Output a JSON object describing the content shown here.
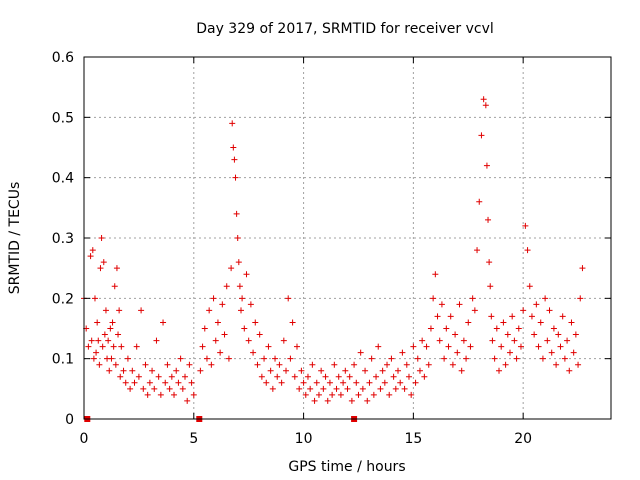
{
  "chart_data": {
    "type": "scatter",
    "title": "Day 329 of 2017, SRMTID for receiver vcvl",
    "xlabel": "GPS time / hours",
    "ylabel": "SRMTID / TECUs",
    "xlim": [
      0,
      24
    ],
    "ylim": [
      0,
      0.6
    ],
    "x_ticks": [
      0,
      5,
      10,
      15,
      20
    ],
    "x_tick_labels": [
      "0",
      "5",
      "10",
      "15",
      "20"
    ],
    "y_ticks": [
      0,
      0.1,
      0.2,
      0.3,
      0.4,
      0.5,
      0.6
    ],
    "y_tick_labels": [
      "0",
      "0.1",
      "0.2",
      "0.3",
      "0.4",
      "0.5",
      "0.6"
    ],
    "grid": true,
    "marker": "+",
    "color": "#e00000",
    "series": [
      {
        "name": "SRMTID",
        "x": [
          0.0,
          0.1,
          0.2,
          0.3,
          0.35,
          0.4,
          0.45,
          0.5,
          0.55,
          0.6,
          0.65,
          0.7,
          0.75,
          0.8,
          0.85,
          0.9,
          0.95,
          1.0,
          1.05,
          1.1,
          1.15,
          1.2,
          1.25,
          1.3,
          1.35,
          1.4,
          1.45,
          1.5,
          1.55,
          1.6,
          1.65,
          1.7,
          1.8,
          1.9,
          2.0,
          2.1,
          2.2,
          2.3,
          2.4,
          2.5,
          2.6,
          2.7,
          2.8,
          2.9,
          3.0,
          3.1,
          3.2,
          3.3,
          3.4,
          3.5,
          3.6,
          3.7,
          3.8,
          3.9,
          4.0,
          4.1,
          4.2,
          4.3,
          4.4,
          4.5,
          4.6,
          4.7,
          4.8,
          4.9,
          5.0,
          5.3,
          5.4,
          5.5,
          5.6,
          5.7,
          5.8,
          5.9,
          6.0,
          6.1,
          6.2,
          6.3,
          6.4,
          6.5,
          6.6,
          6.7,
          6.75,
          6.8,
          6.85,
          6.9,
          6.95,
          7.0,
          7.05,
          7.1,
          7.15,
          7.2,
          7.3,
          7.4,
          7.5,
          7.6,
          7.7,
          7.8,
          7.9,
          8.0,
          8.1,
          8.2,
          8.3,
          8.4,
          8.5,
          8.6,
          8.7,
          8.8,
          8.9,
          9.0,
          9.1,
          9.2,
          9.3,
          9.4,
          9.5,
          9.6,
          9.7,
          9.8,
          9.9,
          10.0,
          10.1,
          10.2,
          10.3,
          10.4,
          10.5,
          10.6,
          10.7,
          10.8,
          10.9,
          11.0,
          11.1,
          11.2,
          11.3,
          11.4,
          11.5,
          11.6,
          11.7,
          11.8,
          11.9,
          12.0,
          12.1,
          12.2,
          12.3,
          12.4,
          12.5,
          12.6,
          12.7,
          12.8,
          12.9,
          13.0,
          13.1,
          13.2,
          13.3,
          13.4,
          13.5,
          13.6,
          13.7,
          13.8,
          13.9,
          14.0,
          14.1,
          14.2,
          14.3,
          14.4,
          14.5,
          14.6,
          14.7,
          14.8,
          14.9,
          15.0,
          15.1,
          15.2,
          15.3,
          15.4,
          15.5,
          15.6,
          15.7,
          15.8,
          15.9,
          16.0,
          16.1,
          16.2,
          16.3,
          16.4,
          16.5,
          16.6,
          16.7,
          16.8,
          16.9,
          17.0,
          17.1,
          17.2,
          17.3,
          17.4,
          17.5,
          17.6,
          17.7,
          17.8,
          17.9,
          18.0,
          18.1,
          18.2,
          18.3,
          18.35,
          18.4,
          18.45,
          18.5,
          18.55,
          18.6,
          18.7,
          18.8,
          18.9,
          19.0,
          19.1,
          19.2,
          19.3,
          19.4,
          19.5,
          19.6,
          19.7,
          19.8,
          19.9,
          20.0,
          20.1,
          20.2,
          20.3,
          20.4,
          20.5,
          20.6,
          20.7,
          20.8,
          20.9,
          21.0,
          21.1,
          21.2,
          21.3,
          21.4,
          21.5,
          21.6,
          21.7,
          21.8,
          21.9,
          22.0,
          22.1,
          22.2,
          22.3,
          22.4,
          22.5,
          22.6,
          22.7
        ],
        "y": [
          0.2,
          0.15,
          0.12,
          0.27,
          0.13,
          0.28,
          0.1,
          0.2,
          0.11,
          0.16,
          0.13,
          0.09,
          0.25,
          0.3,
          0.12,
          0.26,
          0.14,
          0.18,
          0.1,
          0.13,
          0.08,
          0.15,
          0.1,
          0.16,
          0.12,
          0.22,
          0.09,
          0.25,
          0.14,
          0.18,
          0.07,
          0.12,
          0.08,
          0.06,
          0.1,
          0.05,
          0.08,
          0.06,
          0.12,
          0.07,
          0.18,
          0.05,
          0.09,
          0.04,
          0.06,
          0.08,
          0.05,
          0.13,
          0.07,
          0.04,
          0.16,
          0.06,
          0.09,
          0.05,
          0.07,
          0.04,
          0.08,
          0.06,
          0.1,
          0.05,
          0.07,
          0.03,
          0.09,
          0.06,
          0.04,
          0.08,
          0.12,
          0.15,
          0.1,
          0.18,
          0.09,
          0.2,
          0.13,
          0.16,
          0.11,
          0.19,
          0.14,
          0.22,
          0.1,
          0.25,
          0.49,
          0.45,
          0.43,
          0.4,
          0.34,
          0.3,
          0.26,
          0.22,
          0.18,
          0.2,
          0.15,
          0.24,
          0.13,
          0.19,
          0.11,
          0.16,
          0.09,
          0.14,
          0.07,
          0.1,
          0.06,
          0.12,
          0.08,
          0.05,
          0.1,
          0.07,
          0.09,
          0.06,
          0.13,
          0.08,
          0.2,
          0.1,
          0.16,
          0.07,
          0.12,
          0.05,
          0.08,
          0.06,
          0.04,
          0.07,
          0.05,
          0.09,
          0.03,
          0.06,
          0.04,
          0.08,
          0.05,
          0.07,
          0.03,
          0.06,
          0.04,
          0.09,
          0.05,
          0.07,
          0.04,
          0.06,
          0.08,
          0.05,
          0.07,
          0.03,
          0.09,
          0.06,
          0.04,
          0.11,
          0.05,
          0.08,
          0.03,
          0.06,
          0.1,
          0.04,
          0.07,
          0.12,
          0.05,
          0.08,
          0.06,
          0.09,
          0.04,
          0.1,
          0.07,
          0.05,
          0.08,
          0.06,
          0.11,
          0.05,
          0.09,
          0.07,
          0.04,
          0.12,
          0.06,
          0.1,
          0.08,
          0.13,
          0.07,
          0.12,
          0.09,
          0.15,
          0.2,
          0.24,
          0.17,
          0.13,
          0.19,
          0.1,
          0.15,
          0.12,
          0.17,
          0.09,
          0.14,
          0.11,
          0.19,
          0.08,
          0.13,
          0.1,
          0.16,
          0.12,
          0.2,
          0.18,
          0.28,
          0.36,
          0.47,
          0.53,
          0.52,
          0.42,
          0.33,
          0.26,
          0.22,
          0.17,
          0.13,
          0.1,
          0.15,
          0.08,
          0.12,
          0.16,
          0.09,
          0.14,
          0.11,
          0.17,
          0.13,
          0.1,
          0.15,
          0.12,
          0.18,
          0.32,
          0.28,
          0.22,
          0.17,
          0.14,
          0.19,
          0.12,
          0.16,
          0.1,
          0.2,
          0.13,
          0.18,
          0.11,
          0.15,
          0.09,
          0.14,
          0.12,
          0.17,
          0.1,
          0.13,
          0.08,
          0.16,
          0.11,
          0.14,
          0.09,
          0.2,
          0.25
        ]
      }
    ],
    "bottom_markers_x": [
      0.15,
      5.25,
      12.3
    ]
  }
}
